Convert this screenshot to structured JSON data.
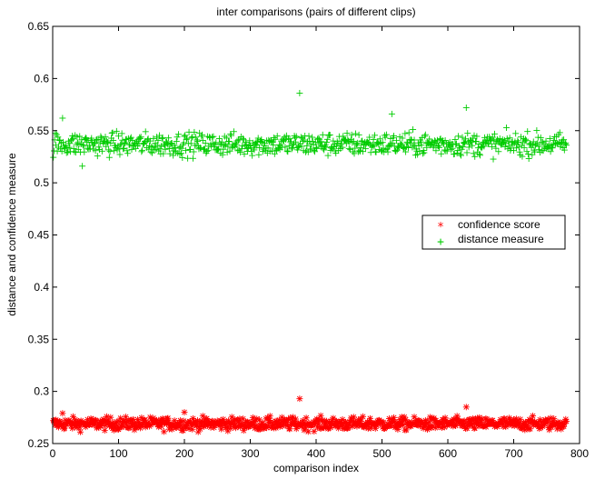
{
  "chart_data": {
    "type": "scatter",
    "title": "inter comparisons (pairs of different clips)",
    "xlabel": "comparison index",
    "ylabel": "distance and confidence measure",
    "xlim": [
      0,
      800
    ],
    "ylim": [
      0.25,
      0.65
    ],
    "xticks": [
      "0",
      "100",
      "200",
      "300",
      "400",
      "500",
      "600",
      "700",
      "800"
    ],
    "yticks": [
      "0.25",
      "0.3",
      "0.35",
      "0.4",
      "0.45",
      "0.5",
      "0.55",
      "0.6",
      "0.65"
    ],
    "grid": false,
    "legend_position": "center-right",
    "series": [
      {
        "name": "confidence score",
        "marker": "*",
        "color": "#ff0000",
        "n_points": 780,
        "baseline": 0.269,
        "spread": 0.005,
        "outliers": [
          {
            "x": 375,
            "y": 0.293
          },
          {
            "x": 628,
            "y": 0.285
          },
          {
            "x": 15,
            "y": 0.279
          },
          {
            "x": 200,
            "y": 0.28
          }
        ]
      },
      {
        "name": "distance measure",
        "marker": "+",
        "color": "#00cc00",
        "n_points": 780,
        "baseline": 0.537,
        "spread": 0.009,
        "outliers": [
          {
            "x": 375,
            "y": 0.586
          },
          {
            "x": 628,
            "y": 0.572
          },
          {
            "x": 515,
            "y": 0.566
          },
          {
            "x": 15,
            "y": 0.562
          },
          {
            "x": 45,
            "y": 0.516
          }
        ]
      }
    ]
  }
}
